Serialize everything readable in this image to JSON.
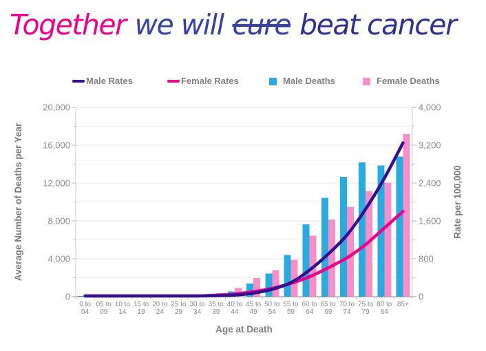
{
  "logo": {
    "segments": [
      {
        "text": "Together",
        "color": "#EC008C",
        "strike": false
      },
      {
        "text": "we will",
        "color": "#3643A5",
        "strike": false
      },
      {
        "text": "cure",
        "color": "#3643A5",
        "strike": true
      },
      {
        "text": "beat cancer",
        "color": "#2E3192",
        "strike": false
      }
    ]
  },
  "legend": {
    "items": [
      {
        "label": "Male Rates",
        "swatch": "line",
        "color": "#350F8F"
      },
      {
        "label": "Female Rates",
        "swatch": "line",
        "color": "#EC008C"
      },
      {
        "label": "Male Deaths",
        "swatch": "square",
        "color": "#29ABE2"
      },
      {
        "label": "Female Deaths",
        "swatch": "square",
        "color": "#F78FC8"
      }
    ]
  },
  "chart_data": {
    "type": "combo-bar-line",
    "categories": [
      "0 to|04",
      "05 to|09",
      "10 to|14",
      "15 to|19",
      "20 to|24",
      "25 to|29",
      "30 to|34",
      "35 to|39",
      "40 to|44",
      "45 to|49",
      "50 to|54",
      "55 to|59",
      "60 to|64",
      "65 to|69",
      "70 to|74",
      "75 to|79",
      "80 to|84",
      "85+"
    ],
    "x_axis": {
      "title": "Age at Death"
    },
    "left_axis": {
      "title": "Average Number of Deaths per Year",
      "min": 0,
      "max": 20000,
      "major_step": 4000,
      "minor_step": 2000,
      "tick_labels": [
        "0",
        "4,000",
        "8,000",
        "12,000",
        "16,000",
        "20,000"
      ]
    },
    "right_axis": {
      "title": "Rate per 100,000",
      "min": 0,
      "max": 4000,
      "major_step": 800,
      "minor_step": 400,
      "tick_labels": [
        "0",
        "800",
        "1,600",
        "2,400",
        "3,200",
        "4,000"
      ]
    },
    "series": [
      {
        "name": "Male Deaths",
        "type": "bar",
        "axis": "left",
        "color": "#29ABE2",
        "values": [
          60,
          40,
          45,
          70,
          95,
          120,
          160,
          200,
          560,
          1400,
          2450,
          4400,
          7650,
          10450,
          12650,
          14200,
          13850,
          14800
        ]
      },
      {
        "name": "Female Deaths",
        "type": "bar",
        "axis": "left",
        "color": "#F78FC8",
        "values": [
          50,
          35,
          35,
          55,
          70,
          100,
          160,
          360,
          900,
          1950,
          2790,
          3900,
          6450,
          8150,
          9500,
          11150,
          12050,
          17150
        ]
      },
      {
        "name": "Male Rates",
        "type": "line",
        "axis": "right",
        "color": "#350F8F",
        "values": [
          3,
          2,
          2,
          4,
          6,
          8,
          12,
          20,
          35,
          75,
          155,
          295,
          560,
          900,
          1300,
          1850,
          2500,
          3250
        ]
      },
      {
        "name": "Female Rates",
        "type": "line",
        "axis": "right",
        "color": "#EC008C",
        "values": [
          2,
          2,
          2,
          3,
          5,
          8,
          15,
          30,
          55,
          105,
          175,
          280,
          420,
          610,
          820,
          1100,
          1450,
          1800
        ]
      }
    ],
    "grid": "horizontal",
    "legend_position": "top"
  }
}
